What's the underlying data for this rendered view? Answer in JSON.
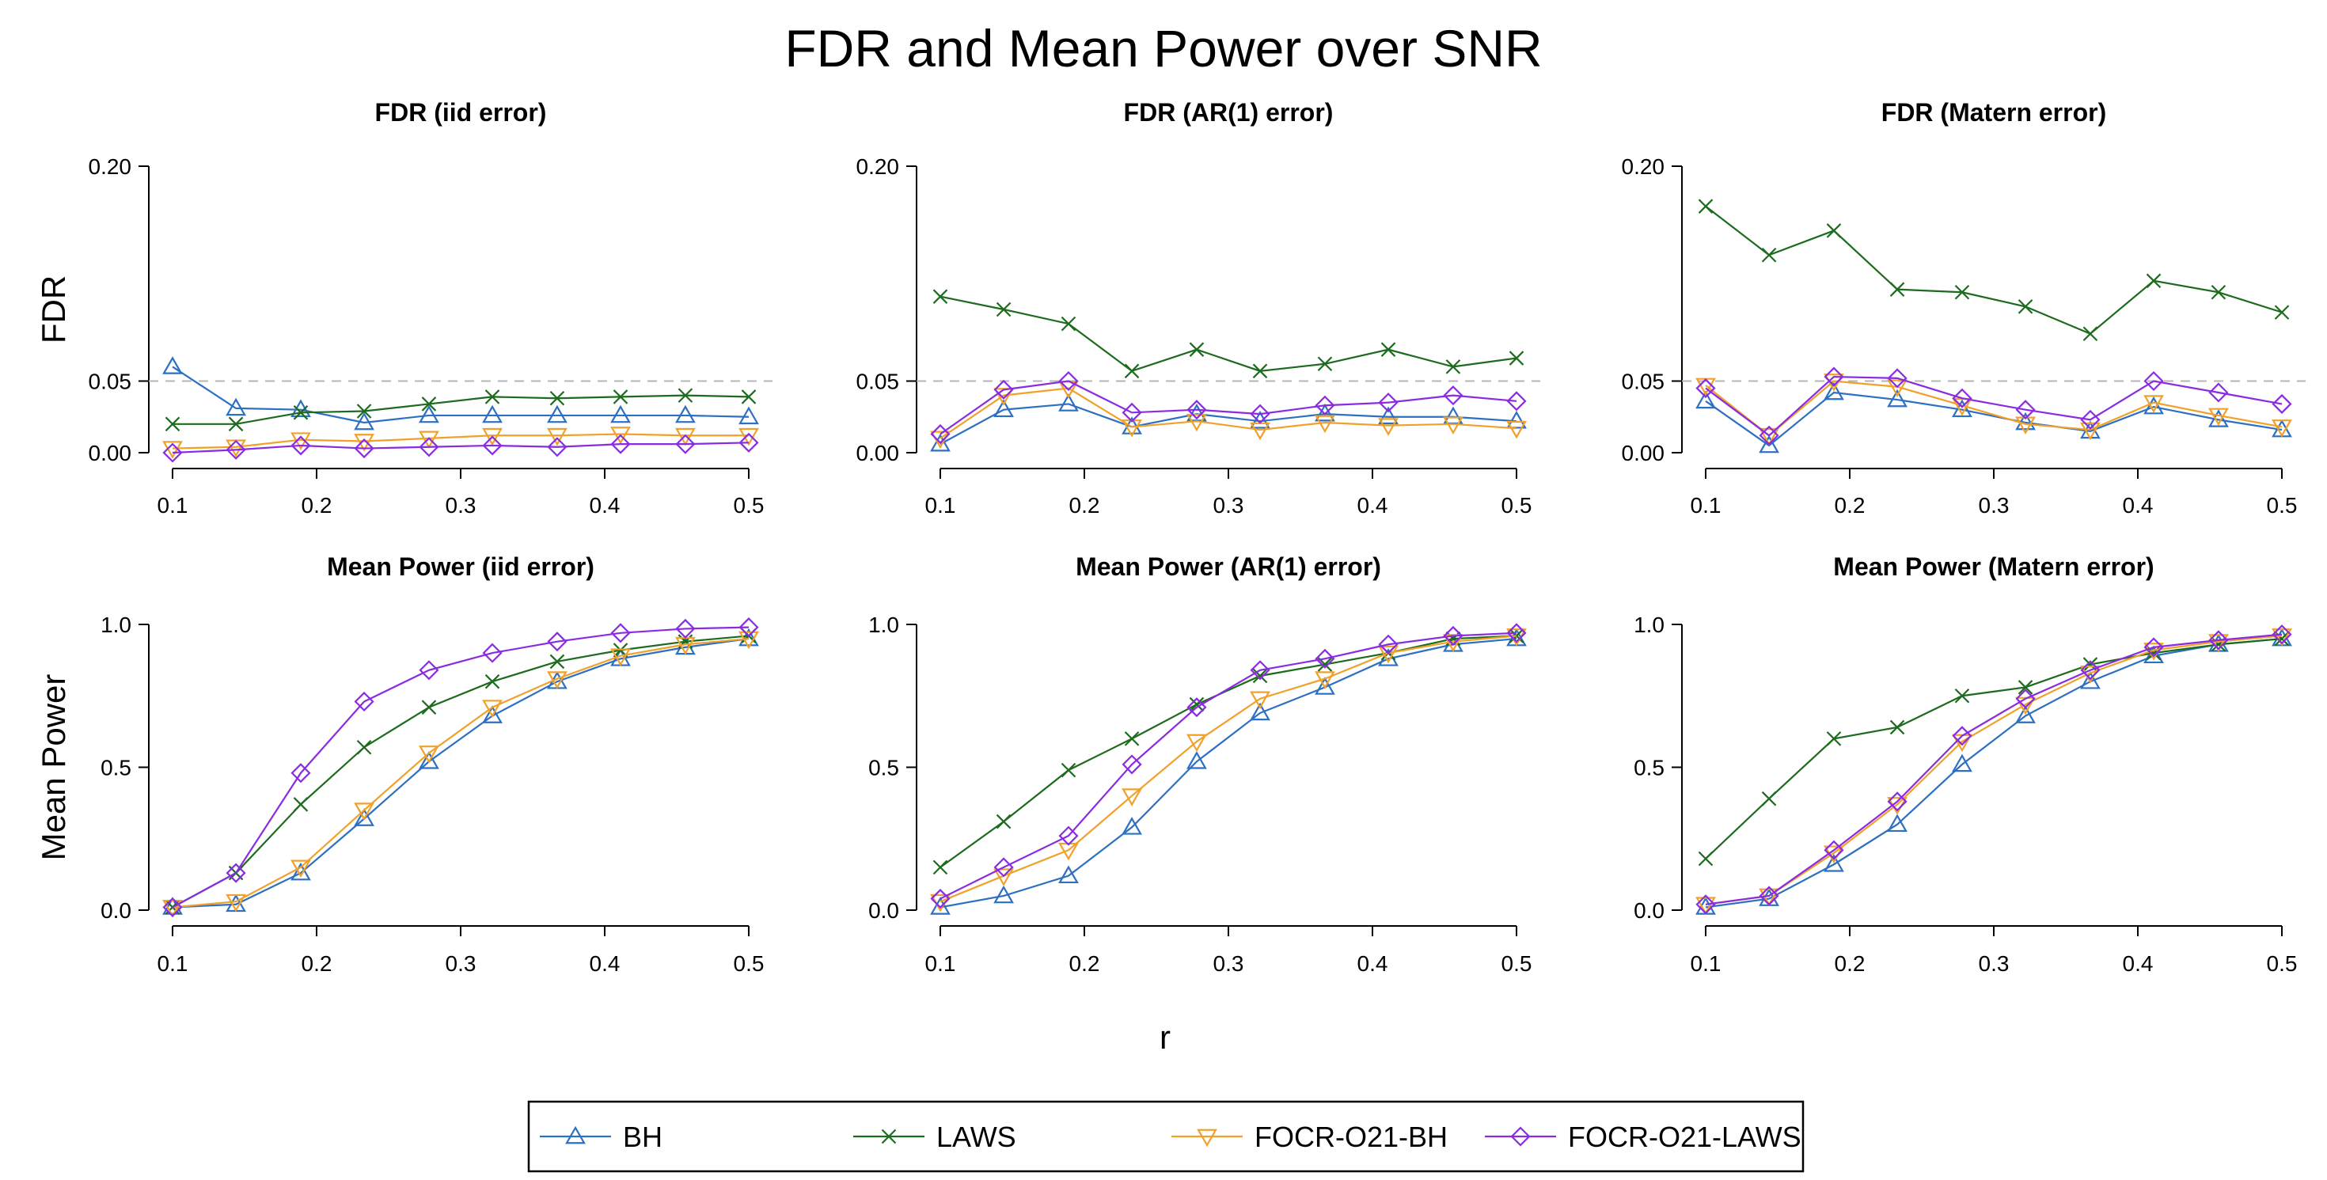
{
  "title": "FDR and Mean Power over SNR",
  "xlabel": "r",
  "colors": {
    "BH": "#2d6fc1",
    "LAWS": "#1d6b1d",
    "FOCR-O21-BH": "#f0a12a",
    "FOCR-O21-LAWS": "#8a2be2",
    "reference_line": "#b5b5b5"
  },
  "legend": [
    {
      "label": "BH",
      "series": "BH",
      "marker": "triangle-up"
    },
    {
      "label": "LAWS",
      "series": "LAWS",
      "marker": "x"
    },
    {
      "label": "FOCR-O21-BH",
      "series": "FOCR-O21-BH",
      "marker": "triangle-down"
    },
    {
      "label": "FOCR-O21-LAWS",
      "series": "FOCR-O21-LAWS",
      "marker": "diamond"
    }
  ],
  "chart_data": [
    {
      "type": "line",
      "title": "FDR (iid error)",
      "ylabel": "FDR",
      "xlim": [
        0.1,
        0.5
      ],
      "ylim": [
        0,
        0.2
      ],
      "xticks": [
        "0.1",
        "0.2",
        "0.3",
        "0.4",
        "0.5"
      ],
      "xtick_values": [
        0.1,
        0.2,
        0.3,
        0.4,
        0.5
      ],
      "yticks": [
        "0.00",
        "0.05",
        "0.20"
      ],
      "ytick_values": [
        0,
        0.05,
        0.2
      ],
      "reference_line": 0.05,
      "x": [
        0.1,
        0.144,
        0.189,
        0.233,
        0.278,
        0.322,
        0.367,
        0.411,
        0.456,
        0.5
      ],
      "series": [
        {
          "name": "BH",
          "values": [
            0.06,
            0.031,
            0.03,
            0.021,
            0.026,
            0.026,
            0.026,
            0.026,
            0.026,
            0.025
          ]
        },
        {
          "name": "LAWS",
          "values": [
            0.02,
            0.02,
            0.028,
            0.029,
            0.034,
            0.039,
            0.038,
            0.039,
            0.04,
            0.039
          ]
        },
        {
          "name": "FOCR-O21-BH",
          "values": [
            0.003,
            0.004,
            0.009,
            0.008,
            0.01,
            0.012,
            0.012,
            0.013,
            0.012,
            0.012
          ]
        },
        {
          "name": "FOCR-O21-LAWS",
          "values": [
            0.0,
            0.002,
            0.005,
            0.003,
            0.004,
            0.005,
            0.004,
            0.006,
            0.006,
            0.007
          ]
        }
      ]
    },
    {
      "type": "line",
      "title": "FDR (AR(1)  error)",
      "ylabel": "",
      "xlim": [
        0.1,
        0.5
      ],
      "ylim": [
        0,
        0.2
      ],
      "xticks": [
        "0.1",
        "0.2",
        "0.3",
        "0.4",
        "0.5"
      ],
      "xtick_values": [
        0.1,
        0.2,
        0.3,
        0.4,
        0.5
      ],
      "yticks": [
        "0.00",
        "0.05",
        "0.20"
      ],
      "ytick_values": [
        0,
        0.05,
        0.2
      ],
      "reference_line": 0.05,
      "x": [
        0.1,
        0.144,
        0.189,
        0.233,
        0.278,
        0.322,
        0.367,
        0.411,
        0.456,
        0.5
      ],
      "series": [
        {
          "name": "BH",
          "values": [
            0.006,
            0.03,
            0.034,
            0.018,
            0.027,
            0.022,
            0.027,
            0.025,
            0.025,
            0.022
          ]
        },
        {
          "name": "LAWS",
          "values": [
            0.109,
            0.1,
            0.09,
            0.057,
            0.072,
            0.057,
            0.062,
            0.072,
            0.06,
            0.066
          ]
        },
        {
          "name": "FOCR-O21-BH",
          "values": [
            0.01,
            0.04,
            0.045,
            0.018,
            0.022,
            0.016,
            0.021,
            0.019,
            0.02,
            0.017
          ]
        },
        {
          "name": "FOCR-O21-LAWS",
          "values": [
            0.013,
            0.044,
            0.05,
            0.028,
            0.03,
            0.027,
            0.033,
            0.035,
            0.04,
            0.036
          ]
        }
      ]
    },
    {
      "type": "line",
      "title": "FDR (Matern error)",
      "ylabel": "",
      "xlim": [
        0.1,
        0.5
      ],
      "ylim": [
        0,
        0.2
      ],
      "xticks": [
        "0.1",
        "0.2",
        "0.3",
        "0.4",
        "0.5"
      ],
      "xtick_values": [
        0.1,
        0.2,
        0.3,
        0.4,
        0.5
      ],
      "yticks": [
        "0.00",
        "0.05",
        "0.20"
      ],
      "ytick_values": [
        0,
        0.05,
        0.2
      ],
      "reference_line": 0.05,
      "x": [
        0.1,
        0.144,
        0.189,
        0.233,
        0.278,
        0.322,
        0.367,
        0.411,
        0.456,
        0.5
      ],
      "series": [
        {
          "name": "BH",
          "values": [
            0.036,
            0.005,
            0.042,
            0.037,
            0.03,
            0.021,
            0.015,
            0.032,
            0.023,
            0.016
          ]
        },
        {
          "name": "LAWS",
          "values": [
            0.172,
            0.138,
            0.155,
            0.114,
            0.112,
            0.102,
            0.083,
            0.12,
            0.112,
            0.098
          ]
        },
        {
          "name": "FOCR-O21-BH",
          "values": [
            0.047,
            0.012,
            0.05,
            0.046,
            0.033,
            0.02,
            0.016,
            0.035,
            0.026,
            0.018
          ]
        },
        {
          "name": "FOCR-O21-LAWS",
          "values": [
            0.045,
            0.012,
            0.053,
            0.052,
            0.038,
            0.03,
            0.023,
            0.05,
            0.042,
            0.034
          ]
        }
      ]
    },
    {
      "type": "line",
      "title": "Mean Power (iid error)",
      "ylabel": "Mean Power",
      "xlim": [
        0.1,
        0.5
      ],
      "ylim": [
        0,
        1
      ],
      "xticks": [
        "0.1",
        "0.2",
        "0.3",
        "0.4",
        "0.5"
      ],
      "xtick_values": [
        0.1,
        0.2,
        0.3,
        0.4,
        0.5
      ],
      "yticks": [
        "0.0",
        "0.5",
        "1.0"
      ],
      "ytick_values": [
        0,
        0.5,
        1
      ],
      "x": [
        0.1,
        0.144,
        0.189,
        0.233,
        0.278,
        0.322,
        0.367,
        0.411,
        0.456,
        0.5
      ],
      "series": [
        {
          "name": "BH",
          "values": [
            0.01,
            0.02,
            0.13,
            0.32,
            0.52,
            0.68,
            0.8,
            0.88,
            0.92,
            0.95
          ]
        },
        {
          "name": "LAWS",
          "values": [
            0.01,
            0.13,
            0.37,
            0.57,
            0.71,
            0.8,
            0.87,
            0.91,
            0.94,
            0.96
          ]
        },
        {
          "name": "FOCR-O21-BH",
          "values": [
            0.01,
            0.03,
            0.15,
            0.35,
            0.55,
            0.71,
            0.81,
            0.89,
            0.93,
            0.95
          ]
        },
        {
          "name": "FOCR-O21-LAWS",
          "values": [
            0.01,
            0.13,
            0.48,
            0.73,
            0.84,
            0.9,
            0.94,
            0.97,
            0.985,
            0.99
          ]
        }
      ]
    },
    {
      "type": "line",
      "title": "Mean Power (AR(1)  error)",
      "ylabel": "",
      "xlim": [
        0.1,
        0.5
      ],
      "ylim": [
        0,
        1
      ],
      "xticks": [
        "0.1",
        "0.2",
        "0.3",
        "0.4",
        "0.5"
      ],
      "xtick_values": [
        0.1,
        0.2,
        0.3,
        0.4,
        0.5
      ],
      "yticks": [
        "0.0",
        "0.5",
        "1.0"
      ],
      "ytick_values": [
        0,
        0.5,
        1
      ],
      "x": [
        0.1,
        0.144,
        0.189,
        0.233,
        0.278,
        0.322,
        0.367,
        0.411,
        0.456,
        0.5
      ],
      "series": [
        {
          "name": "BH",
          "values": [
            0.01,
            0.05,
            0.12,
            0.29,
            0.52,
            0.69,
            0.78,
            0.88,
            0.93,
            0.95
          ]
        },
        {
          "name": "LAWS",
          "values": [
            0.15,
            0.31,
            0.49,
            0.6,
            0.72,
            0.82,
            0.86,
            0.9,
            0.95,
            0.96
          ]
        },
        {
          "name": "FOCR-O21-BH",
          "values": [
            0.03,
            0.12,
            0.21,
            0.4,
            0.59,
            0.74,
            0.81,
            0.9,
            0.94,
            0.96
          ]
        },
        {
          "name": "FOCR-O21-LAWS",
          "values": [
            0.04,
            0.15,
            0.26,
            0.51,
            0.71,
            0.84,
            0.88,
            0.93,
            0.96,
            0.97
          ]
        }
      ]
    },
    {
      "type": "line",
      "title": "Mean Power (Matern error)",
      "ylabel": "",
      "xlim": [
        0.1,
        0.5
      ],
      "ylim": [
        0,
        1
      ],
      "xticks": [
        "0.1",
        "0.2",
        "0.3",
        "0.4",
        "0.5"
      ],
      "xtick_values": [
        0.1,
        0.2,
        0.3,
        0.4,
        0.5
      ],
      "yticks": [
        "0.0",
        "0.5",
        "1.0"
      ],
      "ytick_values": [
        0,
        0.5,
        1
      ],
      "x": [
        0.1,
        0.144,
        0.189,
        0.233,
        0.278,
        0.322,
        0.367,
        0.411,
        0.456,
        0.5
      ],
      "series": [
        {
          "name": "BH",
          "values": [
            0.01,
            0.04,
            0.16,
            0.3,
            0.51,
            0.68,
            0.8,
            0.89,
            0.93,
            0.95
          ]
        },
        {
          "name": "LAWS",
          "values": [
            0.18,
            0.39,
            0.6,
            0.64,
            0.75,
            0.78,
            0.86,
            0.9,
            0.93,
            0.95
          ]
        },
        {
          "name": "FOCR-O21-BH",
          "values": [
            0.02,
            0.05,
            0.2,
            0.37,
            0.59,
            0.72,
            0.83,
            0.91,
            0.94,
            0.96
          ]
        },
        {
          "name": "FOCR-O21-LAWS",
          "values": [
            0.02,
            0.05,
            0.21,
            0.38,
            0.61,
            0.74,
            0.84,
            0.92,
            0.945,
            0.965
          ]
        }
      ]
    }
  ]
}
